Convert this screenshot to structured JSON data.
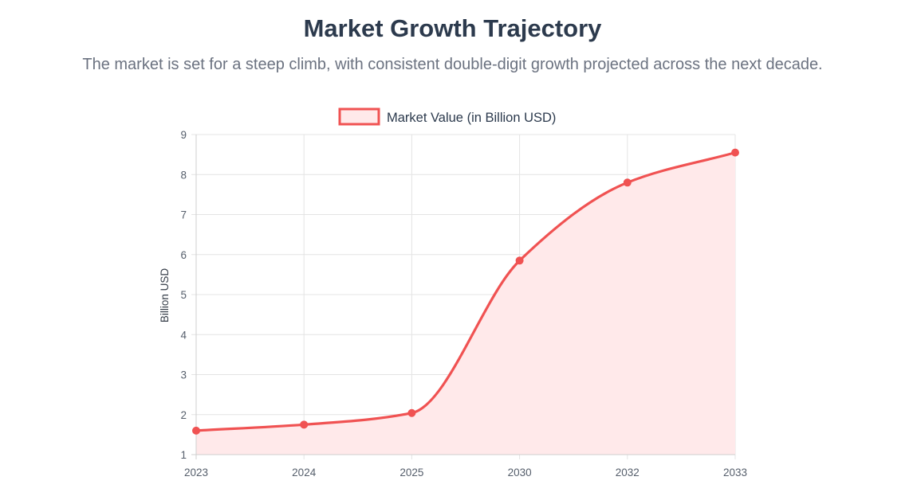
{
  "header": {
    "title": "Market Growth Trajectory",
    "subtitle": "The market is set for a steep climb, with consistent double-digit growth projected across the next decade."
  },
  "chart_data": {
    "type": "line",
    "title": "",
    "categories": [
      "2023",
      "2024",
      "2025",
      "2030",
      "2032",
      "2033"
    ],
    "series": [
      {
        "name": "Market Value (in Billion USD)",
        "values": [
          1.6,
          1.75,
          2.04,
          5.85,
          7.8,
          8.55
        ],
        "color": "#f05252",
        "fill": "#ffe9ea"
      }
    ],
    "xlabel": "",
    "ylabel": "Billion USD",
    "ylim": [
      1,
      9
    ],
    "yticks": [
      "1",
      "2",
      "3",
      "4",
      "5",
      "6",
      "7",
      "8",
      "9"
    ],
    "grid": true,
    "legend_position": "top-center",
    "smooth": true
  }
}
